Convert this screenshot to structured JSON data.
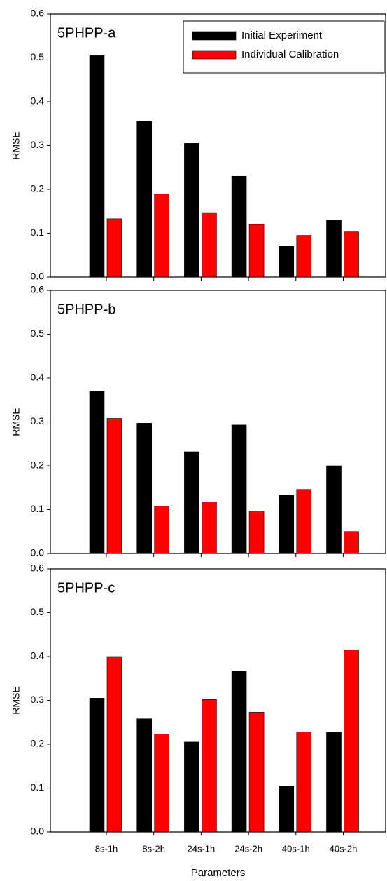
{
  "chart_data": [
    {
      "type": "bar",
      "title": "5PHPP-a",
      "ylabel": "RMSE",
      "categories": [
        null,
        null,
        null,
        null,
        null,
        null
      ],
      "series": [
        {
          "name": "Initial Experiment",
          "color": "#000000",
          "values": [
            0.505,
            0.355,
            0.305,
            0.23,
            0.07,
            0.13
          ]
        },
        {
          "name": "Individual Calibration",
          "color": "#ff0000",
          "values": [
            0.133,
            0.19,
            0.147,
            0.12,
            0.095,
            0.103
          ]
        }
      ],
      "ylim": [
        0,
        0.6
      ],
      "yticks": [
        {
          "value": 0,
          "label": "0.0"
        },
        0.1,
        0.2,
        0.3,
        0.4,
        0.5,
        0.6
      ],
      "legend": "upper right"
    },
    {
      "type": "bar",
      "title": "5PHPP-b",
      "ylabel": "RMSE",
      "categories": [
        null,
        null,
        null,
        null,
        null,
        null
      ],
      "series": [
        {
          "color": "#000000",
          "values": [
            0.37,
            0.297,
            0.232,
            0.293,
            0.133,
            0.2
          ]
        },
        {
          "color": "#ff0000",
          "values": [
            0.308,
            0.108,
            0.118,
            0.097,
            0.146,
            0.05
          ]
        }
      ],
      "ylim": [
        0,
        0.6
      ],
      "yticks": [
        {
          "value": 0,
          "label": "0.0"
        },
        0.1,
        0.2,
        0.3,
        0.4,
        0.5,
        0.6
      ]
    },
    {
      "type": "bar",
      "title": "5PHPP-c",
      "ylabel": "RMSE",
      "xlabel": "Parameters",
      "categories": [
        "8s-1h",
        "8s-2h",
        "24s-1h",
        "24s-2h",
        "40s-1h",
        "40s-2h"
      ],
      "series": [
        {
          "color": "#000000",
          "values": [
            0.305,
            0.258,
            0.205,
            0.367,
            0.105,
            0.227
          ]
        },
        {
          "color": "#ff0000",
          "values": [
            0.4,
            0.223,
            0.302,
            0.273,
            0.228,
            0.415
          ]
        }
      ],
      "ylim": [
        0,
        0.6
      ],
      "yticks": [
        {
          "value": 0,
          "label": "0.0"
        },
        0.1,
        0.2,
        0.3,
        0.4,
        0.5,
        0.6
      ]
    }
  ]
}
